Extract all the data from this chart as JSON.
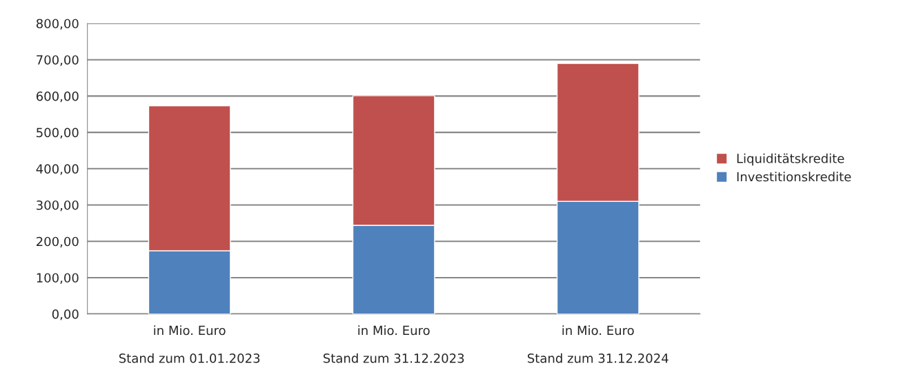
{
  "chart_data": {
    "type": "bar",
    "stacked": true,
    "categories": [
      "in Mio. Euro\n\nStand zum 01.01.2023",
      "in Mio. Euro\n\nStand zum 31.12.2023",
      "in Mio. Euro\n\nStand zum 31.12.2024"
    ],
    "series": [
      {
        "name": "Investitionskredite",
        "color": "#4f81bd",
        "values": [
          174,
          244,
          310
        ]
      },
      {
        "name": "Liquiditätskredite",
        "color": "#c0504d",
        "values": [
          399,
          357,
          380
        ]
      }
    ],
    "ylim": [
      0,
      800
    ],
    "yticks": [
      {
        "value": 0,
        "label": "0,00"
      },
      {
        "value": 100,
        "label": "100,00"
      },
      {
        "value": 200,
        "label": "200,00"
      },
      {
        "value": 300,
        "label": "300,00"
      },
      {
        "value": 400,
        "label": "400,00"
      },
      {
        "value": 500,
        "label": "500,00"
      },
      {
        "value": 600,
        "label": "600,00"
      },
      {
        "value": 700,
        "label": "700,00"
      },
      {
        "value": 800,
        "label": "800,00"
      }
    ],
    "grid": "y",
    "legend": "right"
  }
}
